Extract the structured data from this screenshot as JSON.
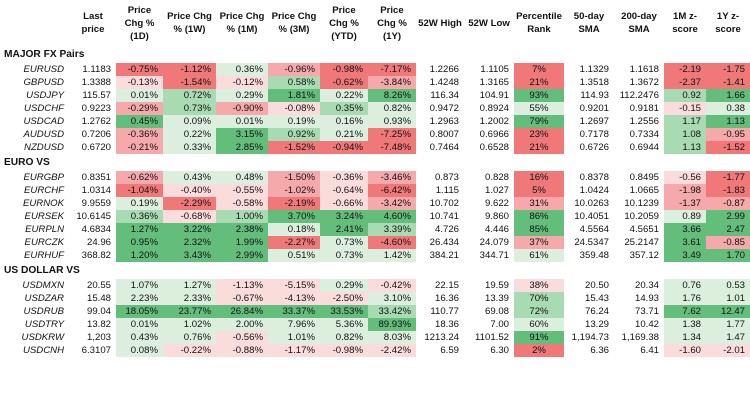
{
  "header": [
    "",
    "Last price",
    "Price Chg % (1D)",
    "Price Chg % (1W)",
    "Price Chg % (1M)",
    "Price Chg % (3M)",
    "Price Chg % (YTD)",
    "Price Chg % (1Y)",
    "52W High",
    "52W Low",
    "Percentile Rank",
    "50-day SMA",
    "200-day SMA",
    "1M z-score",
    "1Y z-score"
  ],
  "sections": [
    {
      "title": "MAJOR FX Pairs",
      "rows": [
        {
          "name": "EURUSD",
          "cells": [
            "1.1183",
            "-0.75%",
            "-1.12%",
            "0.36%",
            "-0.96%",
            "-0.98%",
            "-7.17%",
            "1.2266",
            "1.1105",
            "7%",
            "1.1329",
            "1.1618",
            "-2.19",
            "-1.75"
          ]
        },
        {
          "name": "GBPUSD",
          "cells": [
            "1.3388",
            "-0.13%",
            "-1.54%",
            "-0.12%",
            "0.58%",
            "-0.62%",
            "-3.84%",
            "1.4248",
            "1.3165",
            "21%",
            "1.3518",
            "1.3672",
            "-2.37",
            "-1.41"
          ]
        },
        {
          "name": "USDJPY",
          "cells": [
            "115.57",
            "0.01%",
            "0.72%",
            "0.29%",
            "1.81%",
            "0.22%",
            "8.26%",
            "116.34",
            "104.91",
            "93%",
            "114.93",
            "112.2476",
            "0.92",
            "1.66"
          ]
        },
        {
          "name": "USDCHF",
          "cells": [
            "0.9223",
            "-0.29%",
            "0.73%",
            "-0.90%",
            "-0.08%",
            "0.35%",
            "0.82%",
            "0.9472",
            "0.8924",
            "55%",
            "0.9201",
            "0.9181",
            "-0.15",
            "0.38"
          ]
        },
        {
          "name": "USDCAD",
          "cells": [
            "1.2762",
            "0.45%",
            "0.09%",
            "0.01%",
            "0.19%",
            "0.16%",
            "0.93%",
            "1.2963",
            "1.2002",
            "79%",
            "1.2697",
            "1.2556",
            "1.17",
            "1.13"
          ]
        },
        {
          "name": "AUDUSD",
          "cells": [
            "0.7206",
            "-0.36%",
            "0.22%",
            "3.15%",
            "0.92%",
            "0.21%",
            "-7.25%",
            "0.8007",
            "0.6966",
            "23%",
            "0.7178",
            "0.7334",
            "1.08",
            "-0.95"
          ]
        },
        {
          "name": "NZDUSD",
          "cells": [
            "0.6720",
            "-0.21%",
            "0.33%",
            "2.85%",
            "-1.52%",
            "-0.94%",
            "-7.48%",
            "0.7464",
            "0.6528",
            "21%",
            "0.6726",
            "0.6944",
            "1.13",
            "-1.52"
          ]
        }
      ]
    },
    {
      "title": "EURO VS",
      "rows": [
        {
          "name": "EURGBP",
          "cells": [
            "0.8351",
            "-0.62%",
            "0.43%",
            "0.48%",
            "-1.50%",
            "-0.36%",
            "-3.46%",
            "0.873",
            "0.828",
            "16%",
            "0.8378",
            "0.8495",
            "-0.56",
            "-1.77"
          ]
        },
        {
          "name": "EURCHF",
          "cells": [
            "1.0314",
            "-1.04%",
            "-0.40%",
            "-0.55%",
            "-1.02%",
            "-0.64%",
            "-6.42%",
            "1.115",
            "1.027",
            "5%",
            "1.0424",
            "1.0665",
            "-1.98",
            "-1.83"
          ]
        },
        {
          "name": "EURNOK",
          "cells": [
            "9.9559",
            "0.19%",
            "-2.29%",
            "-0.58%",
            "-2.19%",
            "-0.66%",
            "-3.42%",
            "10.702",
            "9.622",
            "31%",
            "10.0263",
            "10.1239",
            "-1.37",
            "-0.87"
          ]
        },
        {
          "name": "EURSEK",
          "cells": [
            "10.6145",
            "0.36%",
            "-0.68%",
            "1.00%",
            "3.70%",
            "3.24%",
            "4.60%",
            "10.741",
            "9.860",
            "86%",
            "10.4051",
            "10.2059",
            "0.89",
            "2.99"
          ]
        },
        {
          "name": "EURPLN",
          "cells": [
            "4.6834",
            "1.27%",
            "3.22%",
            "2.38%",
            "0.18%",
            "2.41%",
            "3.39%",
            "4.726",
            "4.446",
            "85%",
            "4.5564",
            "4.5651",
            "3.66",
            "2.47"
          ]
        },
        {
          "name": "EURCZK",
          "cells": [
            "24.96",
            "0.95%",
            "2.32%",
            "1.99%",
            "-2.27%",
            "0.73%",
            "-4.60%",
            "26.434",
            "24.079",
            "37%",
            "24.5347",
            "25.2147",
            "3.61",
            "-0.85"
          ]
        },
        {
          "name": "EURHUF",
          "cells": [
            "368.82",
            "1.20%",
            "3.43%",
            "2.99%",
            "0.51%",
            "0.73%",
            "1.42%",
            "384.21",
            "344.71",
            "61%",
            "359.48",
            "357.12",
            "3.49",
            "1.70"
          ]
        }
      ]
    },
    {
      "title": "US DOLLAR VS",
      "rows": [
        {
          "name": "USDMXN",
          "cells": [
            "20.55",
            "1.07%",
            "1.27%",
            "-1.13%",
            "-5.15%",
            "0.29%",
            "-0.42%",
            "22.15",
            "19.59",
            "38%",
            "20.50",
            "20.34",
            "0.76",
            "0.53"
          ]
        },
        {
          "name": "USDZAR",
          "cells": [
            "15.48",
            "2.23%",
            "2.33%",
            "-0.67%",
            "-4.13%",
            "-2.50%",
            "3.10%",
            "16.36",
            "13.39",
            "70%",
            "15.43",
            "14.93",
            "1.76",
            "1.01"
          ]
        },
        {
          "name": "USDRUB",
          "cells": [
            "99.04",
            "18.05%",
            "23.77%",
            "26.84%",
            "33.37%",
            "33.53%",
            "33.42%",
            "110.77",
            "69.08",
            "72%",
            "76.24",
            "73.71",
            "7.62",
            "12.47"
          ]
        },
        {
          "name": "USDTRY",
          "cells": [
            "13.82",
            "0.01%",
            "1.02%",
            "2.00%",
            "7.96%",
            "5.36%",
            "89.93%",
            "18.36",
            "7.00",
            "60%",
            "13.29",
            "10.42",
            "1.38",
            "1.77"
          ]
        },
        {
          "name": "USDKRW",
          "cells": [
            "1,203",
            "0.43%",
            "0.76%",
            "-0.56%",
            "1.01%",
            "0.82%",
            "8.03%",
            "1213.24",
            "1101.52",
            "91%",
            "1,194.73",
            "1,169.38",
            "1.34",
            "1.47"
          ]
        },
        {
          "name": "USDCNH",
          "cells": [
            "6.3107",
            "0.08%",
            "-0.22%",
            "-0.88%",
            "-1.17%",
            "-0.98%",
            "-2.42%",
            "6.59",
            "6.30",
            "2%",
            "6.36",
            "6.41",
            "-1.60",
            "-2.01"
          ]
        }
      ]
    }
  ],
  "colors": {
    "green_strong": "#63be7b",
    "green_mid": "#a9dbb3",
    "green_light": "#dcefdf",
    "red_strong": "#f07879",
    "red_mid": "#f5a9aa",
    "red_light": "#fbdcdc",
    "neutral": "#ffffff"
  }
}
